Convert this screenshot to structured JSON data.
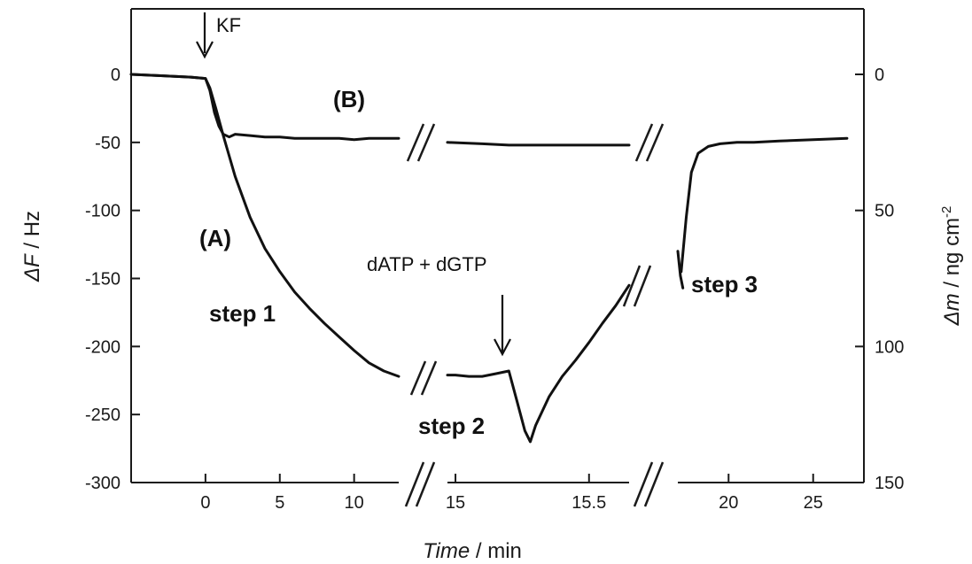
{
  "chart_data": {
    "type": "line",
    "xlabel_italic": "Time",
    "xlabel_unit": " / min",
    "ylabel_left_italic": "ΔF",
    "ylabel_left_unit": " / Hz",
    "ylabel_right_italic": "Δm",
    "ylabel_right_unit": " / ng cm",
    "ylabel_right_sup": "-2",
    "ylim_left": [
      -300,
      0
    ],
    "ylim_right": [
      0,
      150
    ],
    "yticks_left": [
      "0",
      "-50",
      "-100",
      "-150",
      "-200",
      "-250",
      "-300"
    ],
    "yticks_right": [
      "0",
      "50",
      "100",
      "150"
    ],
    "x_segments": [
      {
        "range": [
          -5,
          13
        ],
        "ticks": [
          "0",
          "5",
          "10"
        ]
      },
      {
        "range": [
          14.97,
          15.65
        ],
        "ticks": [
          "15",
          "15.5"
        ]
      },
      {
        "range": [
          17,
          28
        ],
        "ticks": [
          "20",
          "25"
        ]
      }
    ],
    "annotations": {
      "kf": "KF",
      "dntp": "dATP + dGTP",
      "curve_a": "(A)",
      "curve_b": "(B)",
      "step1": "step 1",
      "step2": "step 2",
      "step3": "step 3"
    },
    "series": [
      {
        "name": "(A)",
        "segments": [
          {
            "x": [
              -5,
              -3,
              -1,
              0,
              0.3,
              0.7,
              1.2,
              2,
              3,
              4,
              5,
              6,
              7,
              8,
              9,
              10,
              11,
              12,
              13
            ],
            "y": [
              0,
              -1,
              -2,
              -3,
              -10,
              -25,
              -45,
              -75,
              -105,
              -128,
              -145,
              -160,
              -172,
              -183,
              -193,
              -203,
              -212,
              -218,
              -222
            ]
          },
          {
            "x": [
              14.97,
              15.0,
              15.05,
              15.1,
              15.15,
              15.2,
              15.23,
              15.26,
              15.28,
              15.3,
              15.35,
              15.4,
              15.45,
              15.5,
              15.55,
              15.6,
              15.65
            ],
            "y": [
              -221,
              -221,
              -222,
              -222,
              -220,
              -218,
              -240,
              -262,
              -270,
              -258,
              -237,
              -222,
              -210,
              -197,
              -183,
              -170,
              -155
            ]
          },
          {
            "x": [
              17.0,
              17.15,
              17.3
            ],
            "y": [
              -130,
              -148,
              -157
            ]
          }
        ]
      },
      {
        "name": "(B)",
        "segments": [
          {
            "x": [
              -5,
              -3,
              -1,
              0,
              0.3,
              0.6,
              0.9,
              1.2,
              1.6,
              2,
              3,
              4,
              5,
              6,
              7,
              8,
              9,
              10,
              11,
              12,
              13
            ],
            "y": [
              0,
              -1,
              -2,
              -3,
              -12,
              -28,
              -38,
              -44,
              -46,
              -44,
              -45,
              -46,
              -46,
              -47,
              -47,
              -47,
              -47,
              -48,
              -47,
              -47,
              -47
            ]
          },
          {
            "x": [
              14.97,
              15.1,
              15.2,
              15.3,
              15.4,
              15.5,
              15.6,
              15.65
            ],
            "y": [
              -50,
              -51,
              -52,
              -52,
              -52,
              -52,
              -52,
              -52
            ]
          },
          {
            "x": [
              17.2,
              17.5,
              17.8,
              18.2,
              18.8,
              19.5,
              20.5,
              21.5,
              23,
              25,
              27
            ],
            "y": [
              -145,
              -105,
              -72,
              -58,
              -53,
              -51,
              -50,
              -50,
              -49,
              -48,
              -47
            ]
          }
        ]
      }
    ]
  }
}
